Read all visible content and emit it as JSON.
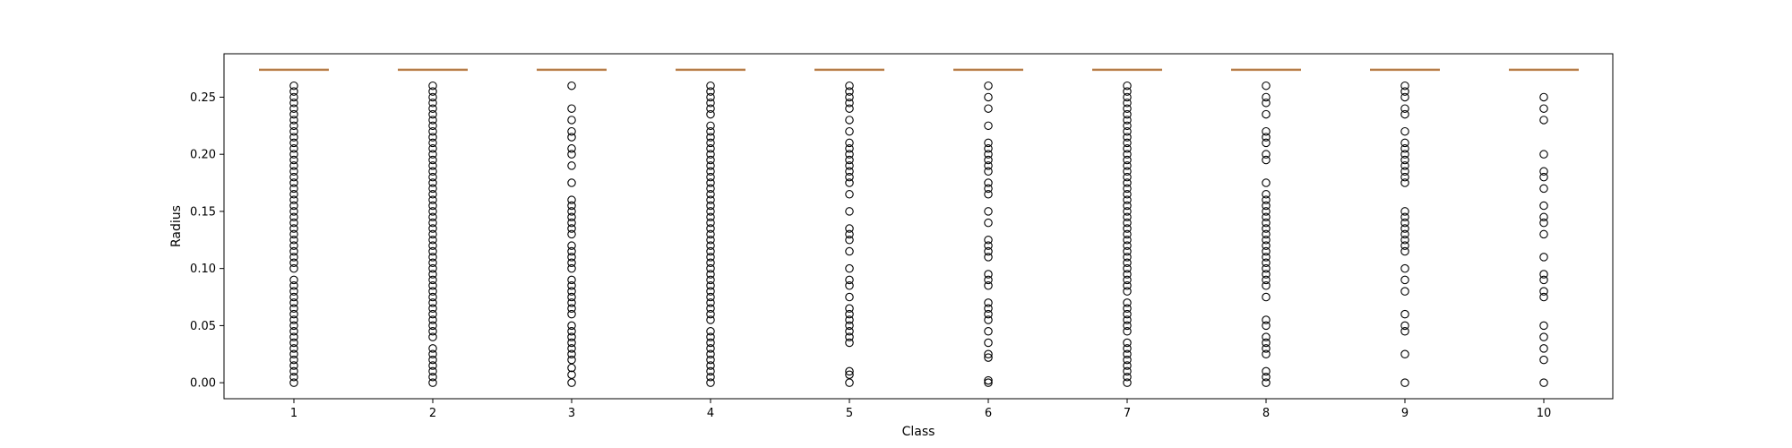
{
  "chart_data": {
    "type": "box",
    "xlabel": "Class",
    "ylabel": "Radius",
    "categories": [
      "1",
      "2",
      "3",
      "4",
      "5",
      "6",
      "7",
      "8",
      "9",
      "10"
    ],
    "ylim": [
      -0.014,
      0.288
    ],
    "yticks": [
      0.0,
      0.05,
      0.1,
      0.15,
      0.2,
      0.25
    ],
    "ytick_labels": [
      "0.00",
      "0.05",
      "0.10",
      "0.15",
      "0.20",
      "0.25"
    ],
    "grid": false,
    "box_level": 0.274,
    "colors": {
      "median": "#c8864a",
      "flier": "#000000",
      "frame": "#000000"
    },
    "outliers": [
      [
        0,
        0.005,
        0.01,
        0.015,
        0.02,
        0.025,
        0.03,
        0.035,
        0.04,
        0.045,
        0.05,
        0.055,
        0.06,
        0.065,
        0.07,
        0.075,
        0.08,
        0.085,
        0.09,
        0.1,
        0.105,
        0.11,
        0.115,
        0.12,
        0.125,
        0.13,
        0.135,
        0.14,
        0.145,
        0.15,
        0.155,
        0.16,
        0.165,
        0.17,
        0.175,
        0.18,
        0.185,
        0.19,
        0.195,
        0.2,
        0.205,
        0.21,
        0.215,
        0.22,
        0.225,
        0.23,
        0.235,
        0.24,
        0.245,
        0.25,
        0.255,
        0.26
      ],
      [
        0,
        0.005,
        0.01,
        0.015,
        0.02,
        0.025,
        0.03,
        0.04,
        0.045,
        0.05,
        0.055,
        0.06,
        0.065,
        0.07,
        0.075,
        0.08,
        0.085,
        0.09,
        0.095,
        0.1,
        0.105,
        0.11,
        0.115,
        0.12,
        0.125,
        0.13,
        0.135,
        0.14,
        0.145,
        0.15,
        0.155,
        0.16,
        0.165,
        0.17,
        0.175,
        0.18,
        0.185,
        0.19,
        0.195,
        0.2,
        0.205,
        0.21,
        0.215,
        0.22,
        0.225,
        0.23,
        0.235,
        0.24,
        0.245,
        0.25,
        0.255,
        0.26
      ],
      [
        0,
        0.007,
        0.013,
        0.02,
        0.025,
        0.03,
        0.035,
        0.04,
        0.045,
        0.05,
        0.06,
        0.065,
        0.07,
        0.075,
        0.08,
        0.085,
        0.09,
        0.1,
        0.105,
        0.11,
        0.115,
        0.12,
        0.13,
        0.135,
        0.14,
        0.145,
        0.15,
        0.155,
        0.16,
        0.175,
        0.19,
        0.2,
        0.205,
        0.215,
        0.22,
        0.23,
        0.24,
        0.26
      ],
      [
        0,
        0.005,
        0.01,
        0.015,
        0.02,
        0.025,
        0.03,
        0.035,
        0.04,
        0.045,
        0.055,
        0.06,
        0.065,
        0.07,
        0.075,
        0.08,
        0.085,
        0.09,
        0.095,
        0.1,
        0.105,
        0.11,
        0.115,
        0.12,
        0.125,
        0.13,
        0.135,
        0.14,
        0.145,
        0.15,
        0.155,
        0.16,
        0.165,
        0.17,
        0.175,
        0.18,
        0.185,
        0.19,
        0.195,
        0.2,
        0.205,
        0.21,
        0.215,
        0.22,
        0.225,
        0.235,
        0.24,
        0.245,
        0.25,
        0.255,
        0.26
      ],
      [
        0,
        0.007,
        0.01,
        0.035,
        0.04,
        0.045,
        0.05,
        0.055,
        0.06,
        0.065,
        0.075,
        0.085,
        0.09,
        0.1,
        0.115,
        0.125,
        0.13,
        0.135,
        0.15,
        0.165,
        0.175,
        0.18,
        0.185,
        0.19,
        0.195,
        0.2,
        0.205,
        0.21,
        0.22,
        0.23,
        0.24,
        0.245,
        0.25,
        0.255,
        0.26
      ],
      [
        0,
        0.002,
        0.022,
        0.025,
        0.035,
        0.045,
        0.055,
        0.06,
        0.065,
        0.07,
        0.085,
        0.09,
        0.095,
        0.11,
        0.115,
        0.12,
        0.125,
        0.14,
        0.15,
        0.165,
        0.17,
        0.175,
        0.185,
        0.19,
        0.195,
        0.2,
        0.205,
        0.21,
        0.225,
        0.24,
        0.25,
        0.26
      ],
      [
        0,
        0.005,
        0.01,
        0.015,
        0.02,
        0.025,
        0.03,
        0.035,
        0.045,
        0.05,
        0.055,
        0.06,
        0.065,
        0.07,
        0.08,
        0.085,
        0.09,
        0.095,
        0.1,
        0.105,
        0.11,
        0.115,
        0.12,
        0.125,
        0.13,
        0.135,
        0.14,
        0.145,
        0.15,
        0.155,
        0.16,
        0.165,
        0.17,
        0.175,
        0.18,
        0.185,
        0.19,
        0.195,
        0.2,
        0.205,
        0.21,
        0.215,
        0.22,
        0.225,
        0.23,
        0.235,
        0.24,
        0.245,
        0.25,
        0.255,
        0.26
      ],
      [
        0,
        0.005,
        0.01,
        0.025,
        0.03,
        0.035,
        0.04,
        0.05,
        0.055,
        0.075,
        0.085,
        0.09,
        0.095,
        0.1,
        0.105,
        0.11,
        0.115,
        0.12,
        0.125,
        0.13,
        0.135,
        0.14,
        0.145,
        0.15,
        0.155,
        0.16,
        0.165,
        0.175,
        0.195,
        0.2,
        0.21,
        0.215,
        0.22,
        0.235,
        0.245,
        0.25,
        0.26
      ],
      [
        0,
        0.025,
        0.045,
        0.05,
        0.06,
        0.08,
        0.09,
        0.1,
        0.115,
        0.12,
        0.125,
        0.13,
        0.135,
        0.14,
        0.145,
        0.15,
        0.175,
        0.18,
        0.185,
        0.19,
        0.195,
        0.2,
        0.205,
        0.21,
        0.22,
        0.235,
        0.24,
        0.25,
        0.255,
        0.26
      ],
      [
        0,
        0.02,
        0.03,
        0.04,
        0.05,
        0.075,
        0.08,
        0.09,
        0.095,
        0.11,
        0.13,
        0.14,
        0.145,
        0.155,
        0.17,
        0.18,
        0.185,
        0.2,
        0.23,
        0.24,
        0.25
      ]
    ]
  }
}
